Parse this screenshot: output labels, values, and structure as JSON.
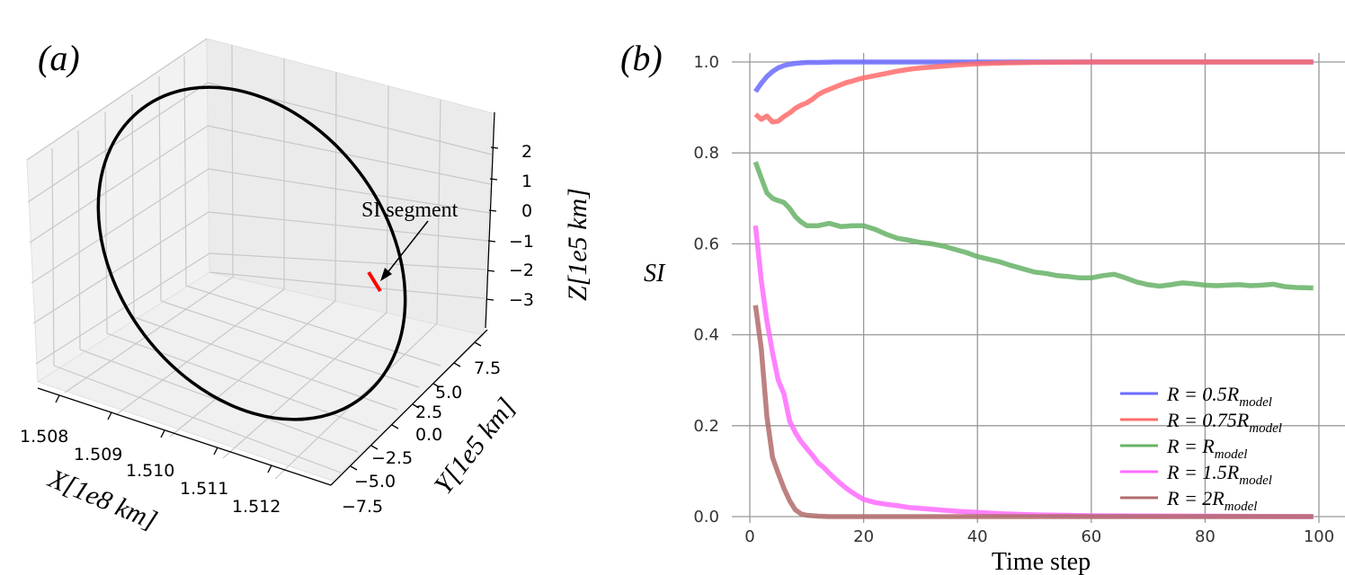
{
  "panel_labels": {
    "a": "(a)",
    "b": "(b)"
  },
  "chart_data": [
    {
      "type": "line3d",
      "panel": "(a)",
      "xlabel": "X[1e8 km]",
      "ylabel": "Y[1e5 km]",
      "zlabel": "Z[1e5 km]",
      "x_ticks": [
        "1.508",
        "1.509",
        "1.510",
        "1.511",
        "1.512"
      ],
      "y_ticks": [
        "7.5",
        "5.0",
        "2.5",
        "0.0",
        "−2.5",
        "−5.0",
        "−7.5"
      ],
      "z_ticks": [
        "2",
        "1",
        "0",
        "−1",
        "−2",
        "−3"
      ],
      "annotation": "SI segment",
      "series": [
        {
          "name": "orbit",
          "color": "#000000"
        },
        {
          "name": "SI segment",
          "color": "#ff0000"
        }
      ]
    },
    {
      "type": "line",
      "panel": "(b)",
      "xlabel": "Time step",
      "ylabel": "SI",
      "xlim": [
        0,
        100
      ],
      "ylim": [
        0,
        1.0
      ],
      "x_ticks": [
        "0",
        "20",
        "40",
        "60",
        "80",
        "100"
      ],
      "y_ticks": [
        "0.0",
        "0.2",
        "0.4",
        "0.6",
        "0.8",
        "1.0"
      ],
      "grid": true,
      "legend_position": "bottom-right",
      "series": [
        {
          "name": "R = 0.5R",
          "sub": "model",
          "color": "#6b6bff",
          "x": [
            1,
            2,
            3,
            4,
            5,
            6,
            7,
            8,
            9,
            10,
            12,
            15,
            20,
            30,
            40,
            60,
            80,
            99
          ],
          "y": [
            0.935,
            0.953,
            0.968,
            0.979,
            0.987,
            0.992,
            0.995,
            0.997,
            0.998,
            0.999,
            0.999,
            1.0,
            1.0,
            1.0,
            1.0,
            1.0,
            1.0,
            1.0
          ]
        },
        {
          "name": "R = 0.75R",
          "sub": "model",
          "color": "#ff6b6b",
          "x": [
            1,
            2,
            3,
            4,
            5,
            6,
            7,
            8,
            9,
            10,
            11,
            12,
            13,
            14,
            15,
            16,
            17,
            18,
            19,
            20,
            22,
            24,
            26,
            28,
            30,
            33,
            36,
            40,
            45,
            50,
            60,
            80,
            99
          ],
          "y": [
            0.885,
            0.874,
            0.881,
            0.868,
            0.87,
            0.88,
            0.888,
            0.898,
            0.905,
            0.91,
            0.918,
            0.928,
            0.935,
            0.94,
            0.945,
            0.95,
            0.955,
            0.958,
            0.962,
            0.965,
            0.97,
            0.975,
            0.98,
            0.984,
            0.987,
            0.99,
            0.993,
            0.996,
            0.998,
            0.999,
            1.0,
            1.0,
            1.0
          ]
        },
        {
          "name": "R = R",
          "sub": "model",
          "color": "#66b266",
          "x": [
            1,
            2,
            3,
            4,
            5,
            6,
            7,
            8,
            9,
            10,
            12,
            14,
            16,
            18,
            20,
            22,
            24,
            26,
            28,
            30,
            32,
            34,
            36,
            38,
            40,
            42,
            44,
            46,
            48,
            50,
            52,
            54,
            56,
            58,
            60,
            62,
            64,
            66,
            68,
            70,
            72,
            74,
            76,
            78,
            80,
            82,
            84,
            86,
            88,
            90,
            92,
            94,
            96,
            99
          ],
          "y": [
            0.78,
            0.745,
            0.712,
            0.7,
            0.695,
            0.691,
            0.678,
            0.66,
            0.648,
            0.64,
            0.64,
            0.645,
            0.638,
            0.64,
            0.64,
            0.632,
            0.621,
            0.612,
            0.608,
            0.603,
            0.6,
            0.595,
            0.588,
            0.581,
            0.572,
            0.566,
            0.56,
            0.552,
            0.545,
            0.538,
            0.535,
            0.53,
            0.528,
            0.525,
            0.525,
            0.53,
            0.533,
            0.525,
            0.516,
            0.51,
            0.507,
            0.51,
            0.514,
            0.512,
            0.509,
            0.508,
            0.509,
            0.51,
            0.508,
            0.509,
            0.511,
            0.506,
            0.504,
            0.503
          ]
        },
        {
          "name": "R = 1.5R",
          "sub": "model",
          "color": "#ff6bff",
          "x": [
            1,
            2,
            3,
            4,
            5,
            6,
            7,
            8,
            9,
            10,
            11,
            12,
            13,
            14,
            15,
            16,
            17,
            18,
            19,
            20,
            22,
            24,
            26,
            28,
            30,
            33,
            36,
            40,
            45,
            50,
            60,
            80,
            99
          ],
          "y": [
            0.64,
            0.52,
            0.43,
            0.36,
            0.3,
            0.27,
            0.21,
            0.185,
            0.165,
            0.15,
            0.135,
            0.118,
            0.108,
            0.095,
            0.083,
            0.072,
            0.062,
            0.053,
            0.045,
            0.038,
            0.031,
            0.027,
            0.024,
            0.02,
            0.018,
            0.015,
            0.012,
            0.009,
            0.006,
            0.004,
            0.002,
            0.001,
            0.0
          ]
        },
        {
          "name": "R = 2R",
          "sub": "model",
          "color": "#b26b6b",
          "x": [
            1,
            2,
            3,
            4,
            5,
            6,
            7,
            8,
            9,
            10,
            11,
            12,
            14,
            16,
            20,
            30,
            40,
            60,
            80,
            99
          ],
          "y": [
            0.465,
            0.37,
            0.22,
            0.13,
            0.095,
            0.062,
            0.035,
            0.015,
            0.006,
            0.003,
            0.002,
            0.001,
            0.0,
            0.0,
            0.0,
            0.0,
            0.0,
            0.0,
            0.0,
            0.0
          ]
        }
      ]
    }
  ]
}
